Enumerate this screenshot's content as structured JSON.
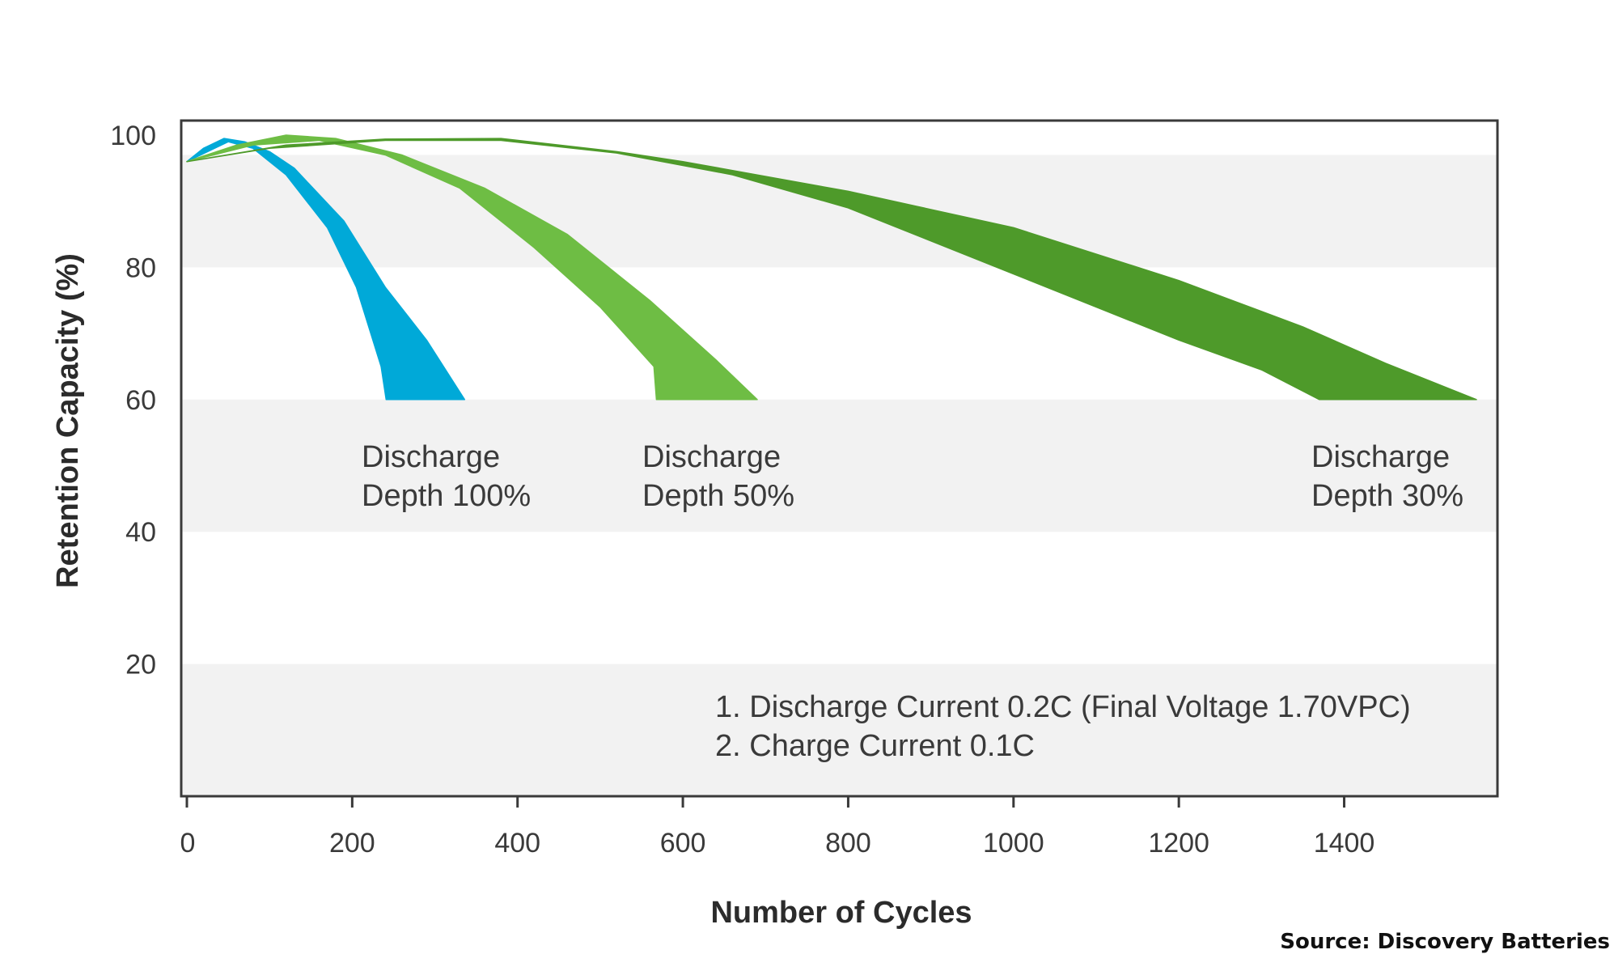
{
  "chart_data": {
    "type": "area",
    "xlabel": "Number of Cycles",
    "ylabel": "Retention Capacity (%)",
    "xlim": [
      0,
      1600
    ],
    "ylim": [
      0,
      105
    ],
    "xticks": [
      0,
      200,
      400,
      600,
      800,
      1000,
      1200,
      1400
    ],
    "yticks": [
      20,
      40,
      60,
      80,
      100
    ],
    "y_bands": [
      [
        0,
        20
      ],
      [
        40,
        60
      ],
      [
        80,
        97
      ]
    ],
    "grid": false,
    "series": [
      {
        "name": "Discharge Depth 100%",
        "label_lines": [
          "Discharge",
          "Depth 100%"
        ],
        "color": "#00a9d8",
        "upper": [
          [
            0,
            96
          ],
          [
            20,
            98
          ],
          [
            45,
            99.5
          ],
          [
            70,
            99
          ],
          [
            100,
            97.5
          ],
          [
            130,
            95
          ],
          [
            190,
            87
          ],
          [
            240,
            77
          ],
          [
            290,
            69
          ],
          [
            336,
            60
          ]
        ],
        "lower": [
          [
            0,
            96
          ],
          [
            25,
            97.5
          ],
          [
            50,
            99
          ],
          [
            80,
            98
          ],
          [
            120,
            94
          ],
          [
            170,
            86
          ],
          [
            205,
            77
          ],
          [
            235,
            65
          ],
          [
            241,
            60
          ]
        ]
      },
      {
        "name": "Discharge Depth 50%",
        "label_lines": [
          "Discharge",
          "Depth 50%"
        ],
        "color": "#6ebd44",
        "upper": [
          [
            0,
            96
          ],
          [
            60,
            98.5
          ],
          [
            120,
            100
          ],
          [
            180,
            99.5
          ],
          [
            260,
            97
          ],
          [
            360,
            92
          ],
          [
            460,
            85
          ],
          [
            560,
            75
          ],
          [
            640,
            66
          ],
          [
            690,
            60
          ]
        ],
        "lower": [
          [
            0,
            96
          ],
          [
            80,
            98.5
          ],
          [
            160,
            99.2
          ],
          [
            240,
            97
          ],
          [
            330,
            92
          ],
          [
            420,
            83
          ],
          [
            500,
            74
          ],
          [
            565,
            65
          ],
          [
            568,
            60
          ]
        ]
      },
      {
        "name": "Discharge Depth 30%",
        "label_lines": [
          "Discharge",
          "Depth 30%"
        ],
        "color": "#4e9a2a",
        "upper": [
          [
            0,
            96
          ],
          [
            120,
            98.5
          ],
          [
            240,
            99.4
          ],
          [
            380,
            99.5
          ],
          [
            520,
            97.5
          ],
          [
            600,
            96
          ],
          [
            800,
            91.5
          ],
          [
            1000,
            86
          ],
          [
            1200,
            78
          ],
          [
            1350,
            71
          ],
          [
            1450,
            65.5
          ],
          [
            1560,
            60
          ]
        ],
        "lower": [
          [
            0,
            96
          ],
          [
            100,
            98
          ],
          [
            240,
            99.2
          ],
          [
            380,
            99.2
          ],
          [
            520,
            97.3
          ],
          [
            660,
            94
          ],
          [
            800,
            89
          ],
          [
            1000,
            79
          ],
          [
            1200,
            69
          ],
          [
            1300,
            64.5
          ],
          [
            1370,
            60
          ]
        ]
      }
    ],
    "notes": [
      "1. Discharge Current 0.2C (Final Voltage 1.70VPC)",
      "2. Charge Current 0.1C"
    ],
    "source": "Source: Discovery Batteries"
  },
  "colors": {
    "band": "#f2f2f2",
    "frame": "#3a3a3a",
    "text": "#3a3a3a"
  }
}
